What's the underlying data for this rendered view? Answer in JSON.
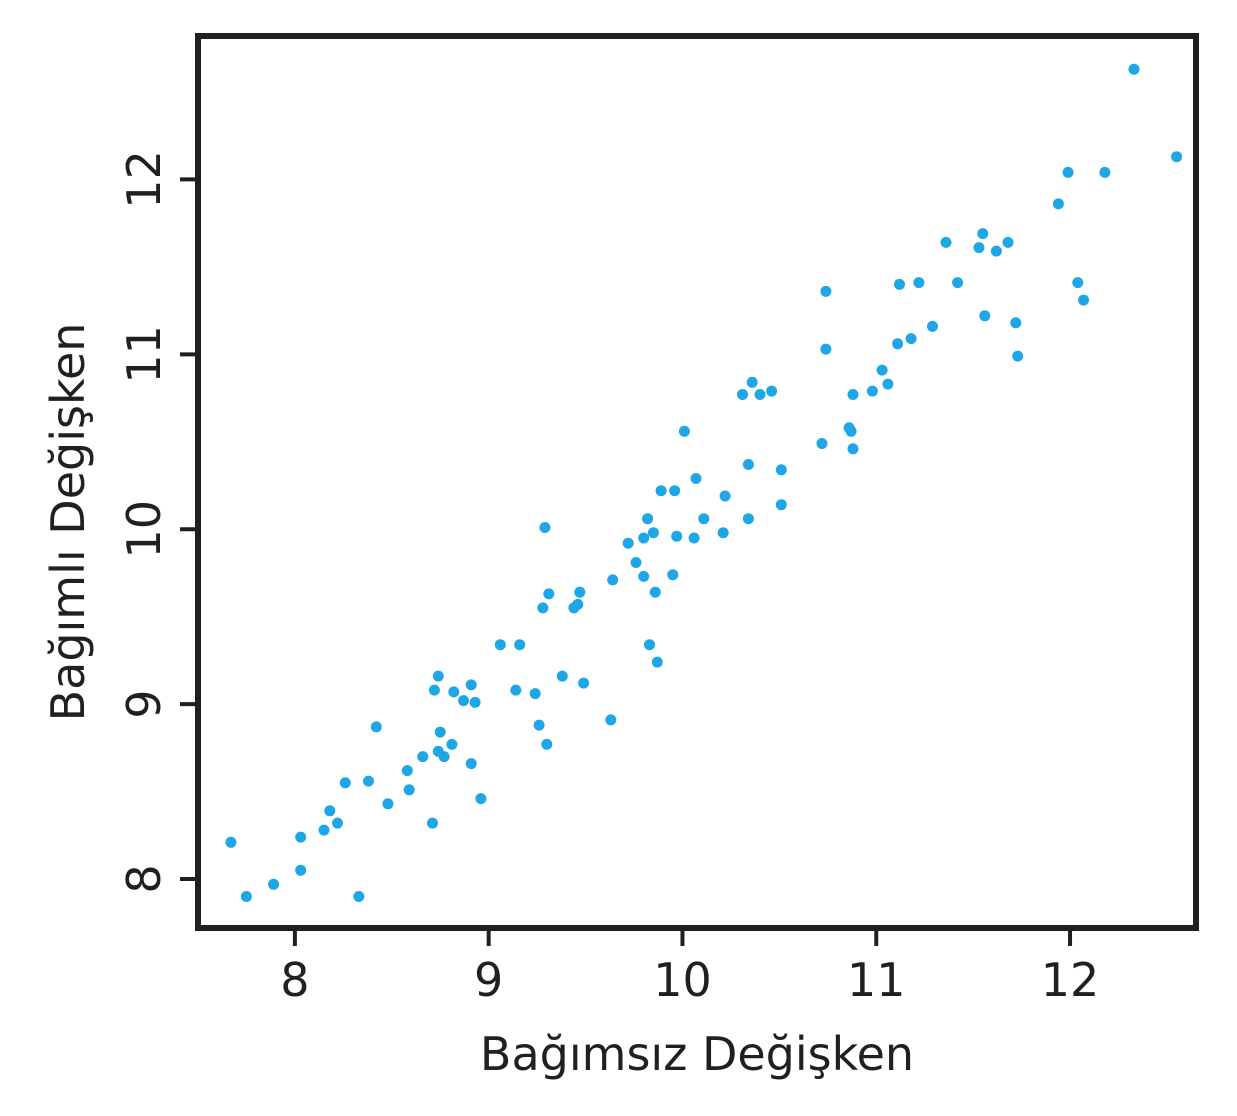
{
  "chart_data": {
    "type": "scatter",
    "title": "",
    "xlabel": "Bağımsız Değişken",
    "ylabel": "Bağımlı Değişken",
    "xlim": [
      7.5,
      12.65
    ],
    "ylim": [
      7.72,
      12.82
    ],
    "xticks": [
      8,
      9,
      10,
      11,
      12
    ],
    "yticks": [
      8,
      9,
      10,
      11,
      12
    ],
    "xtick_labels": [
      "8",
      "9",
      "10",
      "11",
      "12"
    ],
    "ytick_labels": [
      "8",
      "9",
      "10",
      "11",
      "12"
    ],
    "grid": false,
    "legend": "none",
    "point_color": "#1ea6e6",
    "frame_color": "#231f20",
    "series": [
      {
        "x": [
          7.67,
          7.75,
          7.89,
          8.03,
          8.03,
          8.15,
          8.18,
          8.22,
          8.26,
          8.33,
          8.38,
          8.42,
          8.48,
          8.58,
          8.59,
          8.66,
          8.71,
          8.72,
          8.74,
          8.74,
          8.75,
          8.77,
          8.81,
          8.82,
          8.87,
          8.91,
          8.91,
          8.93,
          8.96,
          9.06,
          9.14,
          9.16,
          9.24,
          9.26,
          9.28,
          9.29,
          9.3,
          9.31,
          9.38,
          9.44,
          9.46,
          9.47,
          9.49,
          9.63,
          9.64,
          9.72,
          9.76,
          9.8,
          9.8,
          9.82,
          9.83,
          9.85,
          9.86,
          9.87,
          9.89,
          9.95,
          9.96,
          9.97,
          10.01,
          10.06,
          10.07,
          10.11,
          10.21,
          10.22,
          10.31,
          10.34,
          10.34,
          10.36,
          10.4,
          10.46,
          10.51,
          10.51,
          10.72,
          10.74,
          10.74,
          10.86,
          10.87,
          10.88,
          10.88,
          10.98,
          11.03,
          11.06,
          11.11,
          11.12,
          11.18,
          11.22,
          11.29,
          11.36,
          11.42,
          11.53,
          11.55,
          11.56,
          11.62,
          11.68,
          11.72,
          11.73,
          11.94,
          11.99,
          12.04,
          12.07,
          12.18,
          12.33,
          12.55
        ],
        "y": [
          8.21,
          7.9,
          7.97,
          8.24,
          8.05,
          8.28,
          8.39,
          8.32,
          8.55,
          7.9,
          8.56,
          8.87,
          8.43,
          8.62,
          8.51,
          8.7,
          8.32,
          9.08,
          8.73,
          9.16,
          8.84,
          8.7,
          8.77,
          9.07,
          9.02,
          9.11,
          8.66,
          9.01,
          8.46,
          9.34,
          9.08,
          9.34,
          9.06,
          8.88,
          9.55,
          10.01,
          8.77,
          9.63,
          9.16,
          9.55,
          9.57,
          9.64,
          9.12,
          8.91,
          9.71,
          9.92,
          9.81,
          9.95,
          9.73,
          10.06,
          9.34,
          9.98,
          9.64,
          9.24,
          10.22,
          9.74,
          10.22,
          9.96,
          10.56,
          9.95,
          10.29,
          10.06,
          9.98,
          10.19,
          10.77,
          10.06,
          10.37,
          10.84,
          10.77,
          10.79,
          10.34,
          10.14,
          10.49,
          11.36,
          11.03,
          10.58,
          10.56,
          10.46,
          10.77,
          10.79,
          10.91,
          10.83,
          11.06,
          11.4,
          11.09,
          11.41,
          11.16,
          11.64,
          11.41,
          11.61,
          11.69,
          11.22,
          11.59,
          11.64,
          11.18,
          10.99,
          11.86,
          12.04,
          11.41,
          11.31,
          12.04,
          12.63,
          12.13
        ]
      }
    ]
  }
}
